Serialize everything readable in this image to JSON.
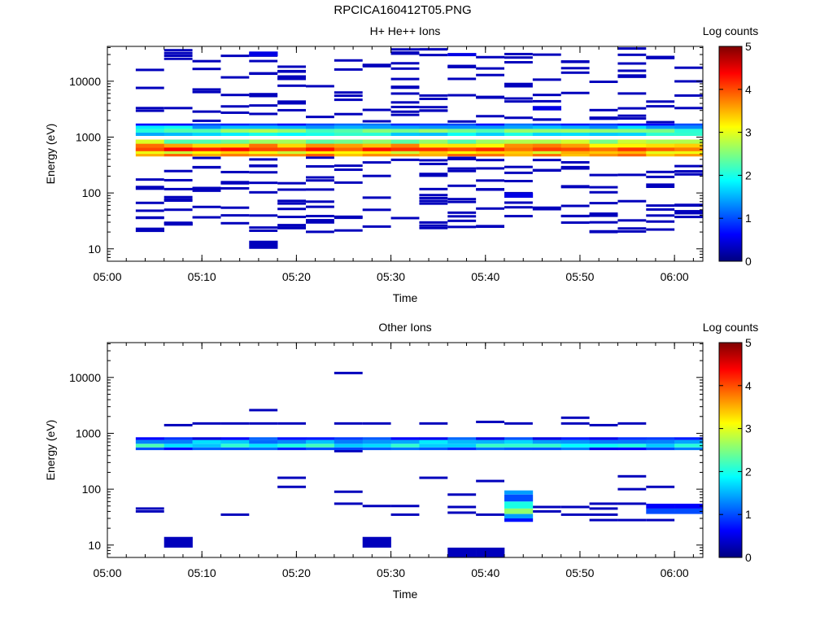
{
  "title": "RPCICA160412T05.PNG",
  "chart_data": [
    {
      "type": "heatmap",
      "title": "H+ He++ Ions",
      "xlabel": "Time",
      "ylabel": "Energy (eV)",
      "colorbar_label": "Log counts",
      "colorbar_ticks": [
        "0",
        "1",
        "2",
        "3",
        "4",
        "5"
      ],
      "colorbar_range": [
        0,
        5
      ],
      "colormap": [
        "#00007f",
        "#0000ff",
        "#007fff",
        "#00ffff",
        "#7fff7f",
        "#ffff00",
        "#ff7f00",
        "#ff0000",
        "#7f0000"
      ],
      "x_ticks": [
        "05:00",
        "05:10",
        "05:20",
        "05:30",
        "05:40",
        "05:50",
        "06:00"
      ],
      "x_range": [
        "05:00",
        "06:03"
      ],
      "y_ticks": [
        "10",
        "100",
        "1000",
        "10000"
      ],
      "y_scale": "log",
      "y_range": [
        6,
        42000
      ],
      "time_bins": [
        "05:03",
        "05:06",
        "05:09",
        "05:12",
        "05:15",
        "05:18",
        "05:21",
        "05:24",
        "05:27",
        "05:30",
        "05:33",
        "05:36",
        "05:39",
        "05:42",
        "05:45",
        "05:48",
        "05:51",
        "05:54",
        "05:57",
        "06:00"
      ],
      "cells": [
        {
          "band": [
            450,
            900
          ],
          "level": 3.7,
          "t_from": "05:03",
          "t_to": "06:03"
        },
        {
          "band": [
            500,
            560
          ],
          "level": 3.2,
          "t_from": "05:03",
          "t_to": "06:03"
        },
        {
          "band": [
            560,
            650
          ],
          "level": 4.1,
          "t_from": "05:03",
          "t_to": "06:03"
        },
        {
          "band": [
            650,
            760
          ],
          "level": 3.5,
          "t_from": "05:03",
          "t_to": "06:03"
        },
        {
          "band": [
            760,
            900
          ],
          "level": 2.6,
          "t_from": "05:03",
          "t_to": "06:03"
        },
        {
          "band": [
            1050,
            1200
          ],
          "level": 1.8,
          "t_from": "05:03",
          "t_to": "06:03"
        },
        {
          "band": [
            1200,
            1400
          ],
          "level": 2.4,
          "t_from": "05:03",
          "t_to": "06:03"
        },
        {
          "band": [
            1400,
            1600
          ],
          "level": 1.6,
          "t_from": "05:03",
          "t_to": "06:03"
        },
        {
          "band": [
            1600,
            1750
          ],
          "level": 0.9,
          "t_from": "05:03",
          "t_to": "06:03"
        },
        {
          "band": [
            20,
            24
          ],
          "level": 0.3,
          "t_from": "05:03",
          "t_to": "05:06"
        },
        {
          "band": [
            26,
            30
          ],
          "level": 0.3,
          "t_from": "05:06",
          "t_to": "05:09"
        },
        {
          "band": [
            10,
            14
          ],
          "level": 0.3,
          "t_from": "05:15",
          "t_to": "05:18"
        },
        {
          "band": [
            82,
            100
          ],
          "level": 0.5,
          "t_from": "05:42",
          "t_to": "05:45"
        },
        {
          "band": [
            3000,
            3600
          ],
          "level": 0.5,
          "t_from": "05:45",
          "t_to": "05:48"
        },
        {
          "band": [
            28000,
            34000
          ],
          "level": 0.5,
          "t_from": "05:15",
          "t_to": "05:18"
        },
        {
          "band": [
            28000,
            32000
          ],
          "level": 0.5,
          "t_from": "05:36",
          "t_to": "05:39"
        }
      ],
      "sparse_counts": {
        "level": 0.3,
        "energy_range": [
          20,
          40000
        ],
        "note": ""
      }
    },
    {
      "type": "heatmap",
      "title": "Other Ions",
      "xlabel": "Time",
      "ylabel": "Energy (eV)",
      "colorbar_label": "Log counts",
      "colorbar_ticks": [
        "0",
        "1",
        "2",
        "3",
        "4",
        "5"
      ],
      "colorbar_range": [
        0,
        5
      ],
      "x_ticks": [
        "05:00",
        "05:10",
        "05:20",
        "05:30",
        "05:40",
        "05:50",
        "06:00"
      ],
      "x_range": [
        "05:00",
        "06:03"
      ],
      "y_ticks": [
        "10",
        "100",
        "1000",
        "10000"
      ],
      "y_scale": "log",
      "y_range": [
        6,
        42000
      ],
      "cells": [
        {
          "band": [
            500,
            560
          ],
          "level": 0.9,
          "t_from": "05:03",
          "t_to": "06:03"
        },
        {
          "band": [
            560,
            650
          ],
          "level": 1.9,
          "t_from": "05:03",
          "t_to": "06:03"
        },
        {
          "band": [
            650,
            760
          ],
          "level": 1.5,
          "t_from": "05:03",
          "t_to": "06:03"
        },
        {
          "band": [
            760,
            850
          ],
          "level": 0.8,
          "t_from": "05:03",
          "t_to": "06:03"
        },
        {
          "band": [
            9,
            14
          ],
          "level": 0.3,
          "t_from": "05:06",
          "t_to": "05:09"
        },
        {
          "band": [
            9,
            14
          ],
          "level": 0.3,
          "t_from": "05:27",
          "t_to": "05:30"
        },
        {
          "band": [
            6,
            9
          ],
          "level": 0.3,
          "t_from": "05:36",
          "t_to": "05:42"
        },
        {
          "band": [
            80,
            95
          ],
          "level": 1.4,
          "t_from": "05:42",
          "t_to": "05:45"
        },
        {
          "band": [
            60,
            80
          ],
          "level": 1.0,
          "t_from": "05:42",
          "t_to": "05:45"
        },
        {
          "band": [
            45,
            60
          ],
          "level": 2.0,
          "t_from": "05:42",
          "t_to": "05:45"
        },
        {
          "band": [
            36,
            45
          ],
          "level": 2.6,
          "t_from": "05:42",
          "t_to": "05:45"
        },
        {
          "band": [
            30,
            36
          ],
          "level": 1.4,
          "t_from": "05:42",
          "t_to": "05:45"
        },
        {
          "band": [
            26,
            30
          ],
          "level": 0.7,
          "t_from": "05:42",
          "t_to": "05:45"
        },
        {
          "band": [
            36,
            45
          ],
          "level": 1.0,
          "t_from": "05:57",
          "t_to": "06:03"
        },
        {
          "band": [
            45,
            55
          ],
          "level": 0.6,
          "t_from": "05:57",
          "t_to": "06:03"
        }
      ]
    }
  ]
}
